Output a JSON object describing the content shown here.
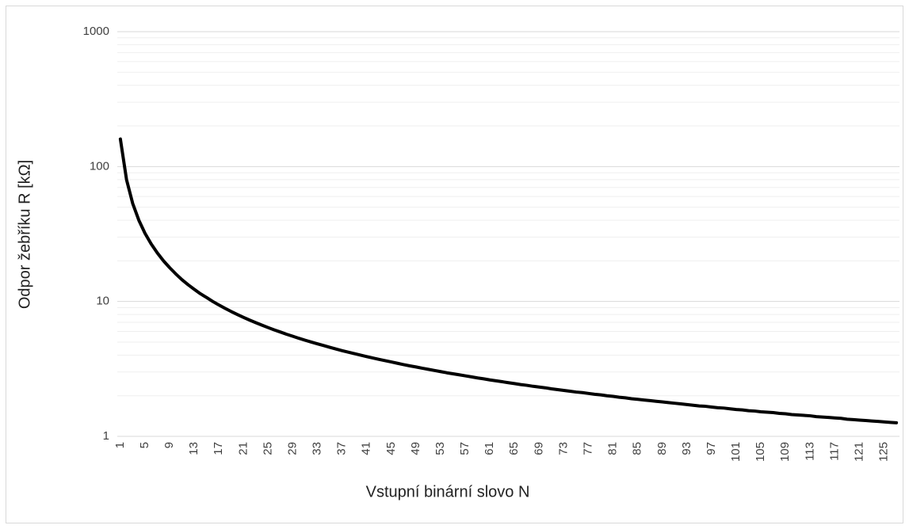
{
  "chart_data": {
    "type": "line",
    "x_label": "Vstupní binární slovo N",
    "y_label": "Odpor žebříku R [kΩ]",
    "log_scale_y": true,
    "grid": true,
    "minor_grid": true,
    "categories": [
      1,
      null,
      null,
      null,
      5,
      null,
      null,
      null,
      9,
      null,
      null,
      null,
      13,
      null,
      null,
      null,
      17,
      null,
      null,
      null,
      21,
      null,
      null,
      null,
      25,
      null,
      null,
      null,
      29,
      null,
      null,
      null,
      33,
      null,
      null,
      null,
      37,
      null,
      null,
      null,
      41,
      null,
      null,
      null,
      45,
      null,
      null,
      null,
      49,
      null,
      null,
      null,
      53,
      null,
      null,
      null,
      57,
      null,
      null,
      null,
      61,
      null,
      null,
      null,
      65,
      null,
      null,
      null,
      69,
      null,
      null,
      null,
      73,
      null,
      null,
      null,
      77,
      null,
      null,
      null,
      81,
      null,
      null,
      null,
      85,
      null,
      null,
      null,
      89,
      null,
      null,
      null,
      93,
      null,
      null,
      null,
      97,
      null,
      null,
      null,
      101,
      null,
      null,
      null,
      105,
      null,
      null,
      null,
      109,
      null,
      null,
      null,
      113,
      null,
      null,
      null,
      117,
      null,
      null,
      null,
      121,
      null,
      null,
      null,
      125,
      null,
      null
    ],
    "series": [
      {
        "color": "#000000",
        "values": [
          160,
          80,
          53.3,
          40,
          32,
          26.7,
          22.9,
          20,
          17.8,
          16,
          14.5,
          13.3,
          12.3,
          11.4,
          10.7,
          10,
          9.41,
          8.89,
          8.42,
          8,
          7.62,
          7.27,
          6.96,
          6.67,
          6.4,
          6.15,
          5.93,
          5.71,
          5.52,
          5.33,
          5.16,
          5,
          4.85,
          4.71,
          4.57,
          4.44,
          4.32,
          4.21,
          4.1,
          4,
          3.9,
          3.81,
          3.72,
          3.64,
          3.56,
          3.48,
          3.4,
          3.33,
          3.27,
          3.2,
          3.14,
          3.08,
          3.02,
          2.96,
          2.91,
          2.86,
          2.81,
          2.76,
          2.71,
          2.67,
          2.62,
          2.58,
          2.54,
          2.5,
          2.46,
          2.42,
          2.39,
          2.35,
          2.32,
          2.29,
          2.25,
          2.22,
          2.19,
          2.16,
          2.13,
          2.11,
          2.08,
          2.05,
          2.03,
          2,
          1.98,
          1.95,
          1.93,
          1.9,
          1.88,
          1.86,
          1.84,
          1.82,
          1.8,
          1.78,
          1.76,
          1.74,
          1.72,
          1.7,
          1.68,
          1.67,
          1.65,
          1.63,
          1.62,
          1.6,
          1.58,
          1.57,
          1.55,
          1.54,
          1.52,
          1.51,
          1.5,
          1.48,
          1.47,
          1.45,
          1.44,
          1.43,
          1.42,
          1.4,
          1.39,
          1.38,
          1.37,
          1.36,
          1.34,
          1.33,
          1.32,
          1.31,
          1.3,
          1.29,
          1.28,
          1.27,
          1.26
        ]
      }
    ],
    "ylim": [
      1,
      1000
    ],
    "yticks": [
      1,
      10,
      100,
      1000
    ]
  }
}
